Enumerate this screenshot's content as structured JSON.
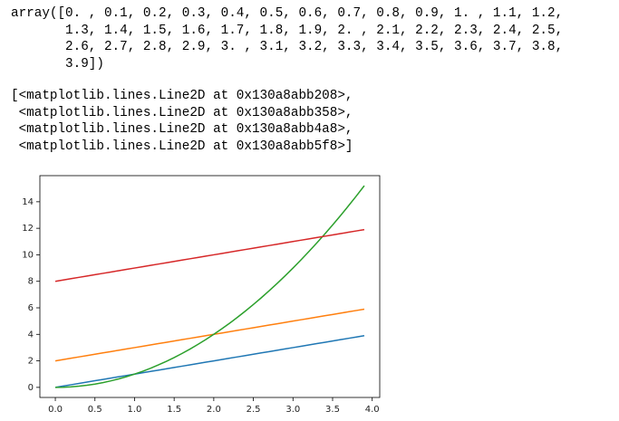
{
  "output": {
    "array_lines": [
      "array([0. , 0.1, 0.2, 0.3, 0.4, 0.5, 0.6, 0.7, 0.8, 0.9, 1. , 1.1, 1.2,",
      "       1.3, 1.4, 1.5, 1.6, 1.7, 1.8, 1.9, 2. , 2.1, 2.2, 2.3, 2.4, 2.5,",
      "       2.6, 2.7, 2.8, 2.9, 3. , 3.1, 3.2, 3.3, 3.4, 3.5, 3.6, 3.7, 3.8,",
      "       3.9])"
    ],
    "repr_lines": [
      "[<matplotlib.lines.Line2D at 0x130a8abb208>,",
      " <matplotlib.lines.Line2D at 0x130a8abb358>,",
      " <matplotlib.lines.Line2D at 0x130a8abb4a8>,",
      " <matplotlib.lines.Line2D at 0x130a8abb5f8>]"
    ]
  },
  "chart_data": {
    "type": "line",
    "x": [
      0,
      0.1,
      0.2,
      0.3,
      0.4,
      0.5,
      0.6,
      0.7,
      0.8,
      0.9,
      1,
      1.1,
      1.2,
      1.3,
      1.4,
      1.5,
      1.6,
      1.7,
      1.8,
      1.9,
      2,
      2.1,
      2.2,
      2.3,
      2.4,
      2.5,
      2.6,
      2.7,
      2.8,
      2.9,
      3,
      3.1,
      3.2,
      3.3,
      3.4,
      3.5,
      3.6,
      3.7,
      3.8,
      3.9
    ],
    "series": [
      {
        "color": "#1f77b4",
        "values": [
          0,
          0.1,
          0.2,
          0.3,
          0.4,
          0.5,
          0.6,
          0.7,
          0.8,
          0.9,
          1,
          1.1,
          1.2,
          1.3,
          1.4,
          1.5,
          1.6,
          1.7,
          1.8,
          1.9,
          2,
          2.1,
          2.2,
          2.3,
          2.4,
          2.5,
          2.6,
          2.7,
          2.8,
          2.9,
          3,
          3.1,
          3.2,
          3.3,
          3.4,
          3.5,
          3.6,
          3.7,
          3.8,
          3.9
        ]
      },
      {
        "color": "#ff7f0e",
        "values": [
          2,
          2.1,
          2.2,
          2.3,
          2.4,
          2.5,
          2.6,
          2.7,
          2.8,
          2.9,
          3,
          3.1,
          3.2,
          3.3,
          3.4,
          3.5,
          3.6,
          3.7,
          3.8,
          3.9,
          4,
          4.1,
          4.2,
          4.3,
          4.4,
          4.5,
          4.6,
          4.7,
          4.8,
          4.9,
          5,
          5.1,
          5.2,
          5.3,
          5.4,
          5.5,
          5.6,
          5.7,
          5.8,
          5.9
        ]
      },
      {
        "color": "#2ca02c",
        "values": [
          0,
          0.01,
          0.04,
          0.09,
          0.16,
          0.25,
          0.36,
          0.49,
          0.64,
          0.81,
          1,
          1.21,
          1.44,
          1.69,
          1.96,
          2.25,
          2.56,
          2.89,
          3.24,
          3.61,
          4,
          4.41,
          4.84,
          5.29,
          5.76,
          6.25,
          6.76,
          7.29,
          7.84,
          8.41,
          9,
          9.61,
          10.24,
          10.89,
          11.56,
          12.25,
          12.96,
          13.69,
          14.44,
          15.21
        ]
      },
      {
        "color": "#d62728",
        "values": [
          8,
          8.1,
          8.2,
          8.3,
          8.4,
          8.5,
          8.6,
          8.7,
          8.8,
          8.9,
          9,
          9.1,
          9.2,
          9.3,
          9.4,
          9.5,
          9.6,
          9.7,
          9.8,
          9.9,
          10,
          10.1,
          10.2,
          10.3,
          10.4,
          10.5,
          10.6,
          10.7,
          10.8,
          10.9,
          11,
          11.1,
          11.2,
          11.3,
          11.4,
          11.5,
          11.6,
          11.7,
          11.8,
          11.9
        ]
      }
    ],
    "xlim": [
      -0.195,
      4.095
    ],
    "ylim": [
      -0.7605,
      15.9705
    ],
    "xticks": [
      {
        "value": 0,
        "label": "0.0"
      },
      {
        "value": 0.5,
        "label": "0.5"
      },
      {
        "value": 1,
        "label": "1.0"
      },
      {
        "value": 1.5,
        "label": "1.5"
      },
      {
        "value": 2,
        "label": "2.0"
      },
      {
        "value": 2.5,
        "label": "2.5"
      },
      {
        "value": 3,
        "label": "3.0"
      },
      {
        "value": 3.5,
        "label": "3.5"
      },
      {
        "value": 4,
        "label": "4.0"
      }
    ],
    "yticks": [
      0,
      2,
      4,
      6,
      8,
      10,
      12,
      14
    ]
  }
}
